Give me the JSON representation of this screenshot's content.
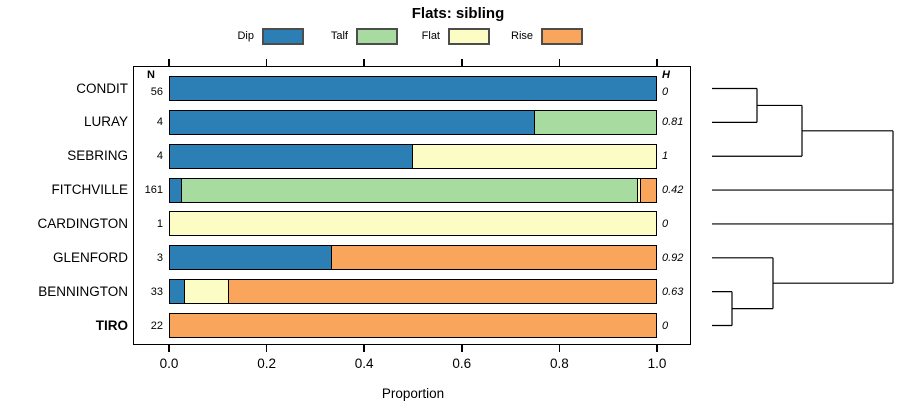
{
  "chart_data": {
    "type": "bar",
    "orientation": "horizontal",
    "stacked": true,
    "title": "Flats: sibling",
    "xlabel": "Proportion",
    "xlim": [
      0,
      1
    ],
    "x_ticks": [
      "0.0",
      "0.2",
      "0.4",
      "0.6",
      "0.8",
      "1.0"
    ],
    "grid": false,
    "legend_position": "top",
    "legend": [
      {
        "label": "Dip",
        "color": "#2C7FB5"
      },
      {
        "label": "Talf",
        "color": "#A8DBA0"
      },
      {
        "label": "Flat",
        "color": "#FCFDC5"
      },
      {
        "label": "Rise",
        "color": "#FAA55C"
      }
    ],
    "columns": {
      "n_header": "N",
      "h_header": "H"
    },
    "rows": [
      {
        "label": "CONDIT",
        "bold": false,
        "n": "56",
        "h": "0",
        "values": {
          "Dip": 1.0,
          "Talf": 0,
          "Flat": 0,
          "Rise": 0
        }
      },
      {
        "label": "LURAY",
        "bold": false,
        "n": "4",
        "h": "0.81",
        "values": {
          "Dip": 0.75,
          "Talf": 0.25,
          "Flat": 0,
          "Rise": 0
        }
      },
      {
        "label": "SEBRING",
        "bold": false,
        "n": "4",
        "h": "1",
        "values": {
          "Dip": 0.5,
          "Talf": 0,
          "Flat": 0.5,
          "Rise": 0
        }
      },
      {
        "label": "FITCHVILLE",
        "bold": false,
        "n": "161",
        "h": "0.42",
        "values": {
          "Dip": 0.025,
          "Talf": 0.937,
          "Flat": 0.007,
          "Rise": 0.031
        }
      },
      {
        "label": "CARDINGTON",
        "bold": false,
        "n": "1",
        "h": "0",
        "values": {
          "Dip": 0,
          "Talf": 0,
          "Flat": 1.0,
          "Rise": 0
        }
      },
      {
        "label": "GLENFORD",
        "bold": false,
        "n": "3",
        "h": "0.92",
        "values": {
          "Dip": 0.333,
          "Talf": 0,
          "Flat": 0,
          "Rise": 0.667
        }
      },
      {
        "label": "BENNINGTON",
        "bold": false,
        "n": "33",
        "h": "0.63",
        "values": {
          "Dip": 0.03,
          "Talf": 0,
          "Flat": 0.091,
          "Rise": 0.879
        }
      },
      {
        "label": "TIRO",
        "bold": true,
        "n": "22",
        "h": "0",
        "values": {
          "Dip": 0,
          "Talf": 0,
          "Flat": 0,
          "Rise": 1.0
        }
      }
    ],
    "dendrogram": {
      "leaf_x": 712,
      "joins": [
        {
          "id": "J1",
          "children": [
            "CONDIT",
            "LURAY"
          ],
          "x": 757
        },
        {
          "id": "J2",
          "children": [
            "J1",
            "SEBRING"
          ],
          "x": 802
        },
        {
          "id": "J3",
          "children": [
            "BENNINGTON",
            "TIRO"
          ],
          "x": 732
        },
        {
          "id": "J4",
          "children": [
            "GLENFORD",
            "J3"
          ],
          "x": 773
        },
        {
          "id": "ROOT",
          "children": [
            "J2",
            "FITCHVILLE",
            "CARDINGTON",
            "J4"
          ],
          "x": 893
        }
      ]
    }
  }
}
